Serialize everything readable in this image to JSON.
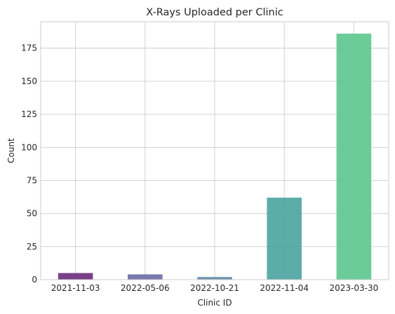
{
  "chart_data": {
    "type": "bar",
    "title": "X-Rays Uploaded per Clinic",
    "xlabel": "Clinic ID",
    "ylabel": "Count",
    "categories": [
      "2021-11-03",
      "2022-05-06",
      "2022-10-21",
      "2022-11-04",
      "2023-03-30"
    ],
    "values": [
      5,
      4,
      2,
      62,
      186
    ],
    "ylim": [
      0,
      195
    ],
    "yticks": [
      0,
      25,
      50,
      75,
      100,
      125,
      150,
      175
    ],
    "grid": true,
    "legend": "none",
    "colors": [
      "#6a2b7a",
      "#6a6aa5",
      "#5f87a6",
      "#4aa3a0",
      "#5cc78e"
    ]
  }
}
